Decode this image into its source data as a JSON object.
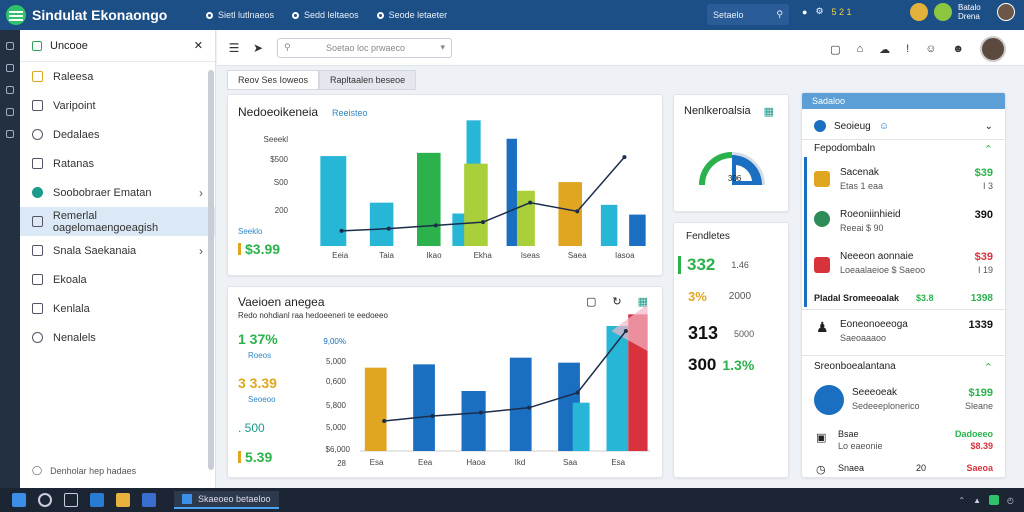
{
  "app": {
    "title": "Sindulat Ekonaongo"
  },
  "top_nav": [
    "Sietl lutlnaeos",
    "Sedd leltaeos",
    "Seode letaeter"
  ],
  "top_search": {
    "label": "Setaelo",
    "icon": "search-icon"
  },
  "top_right": {
    "badge": "5 2 1",
    "user_line1": "Batalo",
    "user_line2": "Drena"
  },
  "sidebar": {
    "title": "Uncooe",
    "items": [
      {
        "label": "Raleesa",
        "icon": "folder-icon"
      },
      {
        "label": "Varipoint",
        "icon": "chart-icon"
      },
      {
        "label": "Dedalaes",
        "icon": "gear-icon"
      },
      {
        "label": "Ratanas",
        "icon": "list-icon"
      },
      {
        "label": "Soobobraer Ematan",
        "icon": "shield-icon"
      },
      {
        "label": "Remerlal oagelomaengoeagish",
        "icon": "rocket-icon"
      },
      {
        "label": "Snala Saekanaia",
        "icon": "grid-icon"
      },
      {
        "label": "Ekoala",
        "icon": "doc-icon"
      },
      {
        "label": "Kenlala",
        "icon": "tag-icon"
      },
      {
        "label": "Nenalels",
        "icon": "help-icon"
      }
    ],
    "footer": "Denholar hep hadaes"
  },
  "toolbar": {
    "search_placeholder": "Soetao loc prwaeco"
  },
  "tabs": [
    "Reov Ses Ioweos",
    "Rapltaalen beseoe"
  ],
  "card1": {
    "title": "Nedoeoikeneia",
    "subtitle": "Reeisteo",
    "stat_label": "Seeklo",
    "stat_value": "$3.99",
    "axis_labels": [
      "Seeekl",
      "$500",
      "S00",
      "200"
    ]
  },
  "card2": {
    "title": "Vaeioen anegea",
    "subtitle": "Redo nohdianl raa hedoeeneri te eedoeeo",
    "stats": [
      {
        "value": "1 37%",
        "label": "Roeos",
        "color": "#2bb24c"
      },
      {
        "value": "3 3.39",
        "label": "Seoeoo",
        "color": "#e0a622"
      },
      {
        "value": ". 500",
        "label": "",
        "color": "#1d9a8b"
      },
      {
        "value": "5.39",
        "label": "",
        "color": "#2bb24c"
      }
    ],
    "axis_labels": [
      "9,00%",
      "5,000",
      "0,600",
      "5,800",
      "5,000",
      "$6,000",
      "28"
    ]
  },
  "gauge_card": {
    "title": "Nenlkeroalsia",
    "center": "306"
  },
  "numbers_card": {
    "title": "Fendletes",
    "rows": [
      {
        "value": "332",
        "sub": "1.46",
        "color": "#2bb24c"
      },
      {
        "value": "3%",
        "sub": "2000",
        "color": "#e0a622"
      },
      {
        "value": "313",
        "sub": "5000",
        "color": "#111"
      },
      {
        "value": "300",
        "sub": "1.3%",
        "color": "#111"
      }
    ]
  },
  "right_panel": {
    "header": "Sadaloo",
    "dropdown": "Seoieug",
    "section1_title": "Fepodombaln",
    "items": [
      {
        "title": "Sacenak",
        "sub": "Etas 1 eaa",
        "val": "$39",
        "subval": "I 3",
        "color": "#2bb24c"
      },
      {
        "title": "Roeoniinhieid",
        "sub": "Reeai $ 90",
        "val": "390",
        "subval": "",
        "color": "#111"
      },
      {
        "title": "Neeeon aonnaie",
        "sub": "Loeaalaeioe  $ Saeoo",
        "val": "$39",
        "subval": "I 19",
        "color": "#d8323c"
      }
    ],
    "total": {
      "label": "Pladal Sromeeoalak",
      "mid": "$3.8",
      "val": "1398"
    },
    "person": {
      "title": "Eoneonoeeoga",
      "sub": "Saeoaaaoo",
      "val": "1339"
    },
    "section2_title": "Sreonboealantana",
    "items2": [
      {
        "title": "Seeeoeak",
        "sub": "Sedeeeplonerico",
        "val": "$199",
        "subval": "Sleane"
      },
      {
        "title": "Bsae",
        "sub": "Lo eaeonie",
        "val": "Dadoeeo",
        "subval": "$8.39"
      },
      {
        "title": "Snaea",
        "sub": "",
        "val": "20",
        "subval": "Saeoa"
      }
    ]
  },
  "taskbar": {
    "app_label": "Skaeoeo betaeloo"
  },
  "chart_data": [
    {
      "type": "bar",
      "categories": [
        "Eeia",
        "Taia",
        "Ikao",
        "Ekha",
        "Iseas",
        "Saea",
        "Iasoa"
      ],
      "series": [
        {
          "values": [
            415,
            200,
            0,
            0,
            0,
            0,
            0
          ]
        },
        {
          "values": [
            0,
            0,
            430,
            0,
            0,
            0,
            0
          ]
        },
        {
          "values": [
            0,
            0,
            0,
            380,
            255,
            0,
            0
          ]
        },
        {
          "values": [
            0,
            0,
            0,
            0,
            495,
            0,
            145
          ]
        },
        {
          "values": [
            0,
            0,
            0,
            0,
            0,
            295,
            0
          ]
        }
      ],
      "line": [
        70,
        80,
        95,
        110,
        200,
        160,
        410
      ],
      "ylim": [
        0,
        600
      ],
      "grid": false
    },
    {
      "type": "bar",
      "categories": [
        "Esa",
        "Eea",
        "Haoa",
        "Ikd",
        "Saa",
        "Esa"
      ],
      "values": [
        5000,
        5200,
        2200,
        5600,
        5300,
        7500
      ],
      "line": [
        1800,
        2100,
        2300,
        2600,
        3500,
        7200
      ],
      "ylim": [
        0,
        9000
      ],
      "grid": false
    }
  ],
  "colors": {
    "brand": "#1d4f87",
    "accent_green": "#2bb24c",
    "accent_blue": "#1a6fc0",
    "accent_cyan": "#27b6d6",
    "accent_yellow": "#e0a622",
    "accent_red": "#d8323c"
  }
}
